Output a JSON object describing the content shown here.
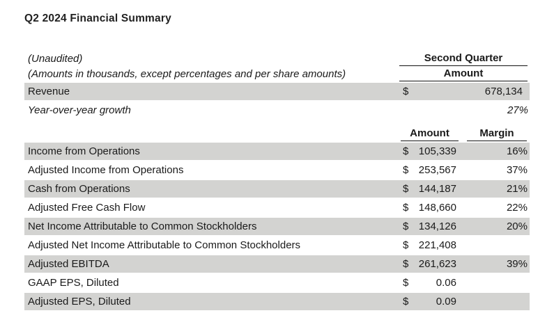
{
  "title": "Q2 2024 Financial Summary",
  "header": {
    "note_unaudited": "(Unaudited)",
    "note_amounts": "(Amounts in thousands, except percentages and per share amounts)",
    "period": "Second Quarter",
    "period_amount": "Amount"
  },
  "columns": {
    "amount": "Amount",
    "margin": "Margin"
  },
  "top_rows": [
    {
      "label": "Revenue",
      "currency": "$",
      "amount": "678,134"
    },
    {
      "label": "Year-over-year growth",
      "value": "27%"
    }
  ],
  "rows": [
    {
      "label": "Income from Operations",
      "currency": "$",
      "amount": "105,339",
      "margin": "16%"
    },
    {
      "label": "Adjusted Income from Operations",
      "currency": "$",
      "amount": "253,567",
      "margin": "37%"
    },
    {
      "label": "Cash from Operations",
      "currency": "$",
      "amount": "144,187",
      "margin": "21%"
    },
    {
      "label": "Adjusted Free Cash Flow",
      "currency": "$",
      "amount": "148,660",
      "margin": "22%"
    },
    {
      "label": "Net Income Attributable to Common Stockholders",
      "currency": "$",
      "amount": "134,126",
      "margin": "20%"
    },
    {
      "label": "Adjusted Net Income Attributable to Common Stockholders",
      "currency": "$",
      "amount": "221,408",
      "margin": ""
    },
    {
      "label": "Adjusted EBITDA",
      "currency": "$",
      "amount": "261,623",
      "margin": "39%"
    },
    {
      "label": "GAAP EPS, Diluted",
      "currency": "$",
      "amount": "0.06",
      "margin": ""
    },
    {
      "label": "Adjusted EPS, Diluted",
      "currency": "$",
      "amount": "0.09",
      "margin": ""
    }
  ],
  "colors": {
    "shaded_row": "#d3d3d1",
    "text": "#1a1a1a",
    "rule": "#111111"
  }
}
